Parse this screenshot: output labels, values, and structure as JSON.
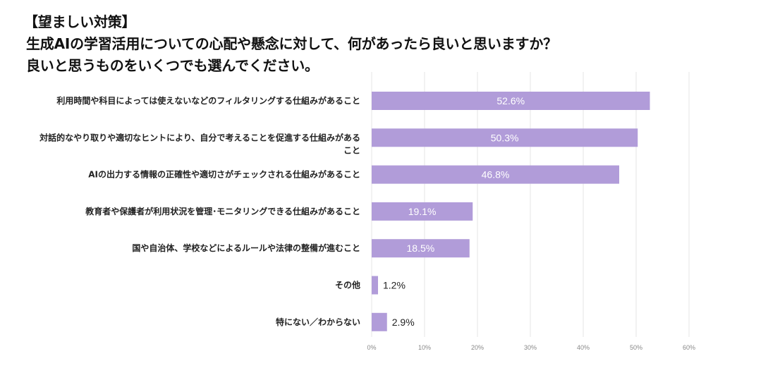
{
  "title": {
    "line1": "【望ましい対策】",
    "line2": "生成AIの学習活用についての心配や懸念に対して、何があったら良いと思いますか？",
    "line3": "良いと思うものをいくつでも選んでください。"
  },
  "chart_data": {
    "type": "bar",
    "orientation": "horizontal",
    "categories": [
      [
        "利用時間や科目によっては使えないなどのフィルタリングする仕組みがあること"
      ],
      [
        "対話的なやり取りや適切なヒントにより、自分で考えることを促進する仕組みがある",
        "こと"
      ],
      [
        "AIの出力する情報の正確性や適切さがチェックされる仕組みがあること"
      ],
      [
        "教育者や保護者が利用状況を管理･モニタリングできる仕組みがあること"
      ],
      [
        "国や自治体、学校などによるルールや法律の整備が進むこと"
      ],
      [
        "その他"
      ],
      [
        "特にない／わからない"
      ]
    ],
    "values": [
      52.6,
      50.3,
      46.8,
      19.1,
      18.5,
      1.2,
      2.9
    ],
    "value_labels": [
      "52.6%",
      "50.3%",
      "46.8%",
      "19.1%",
      "18.5%",
      "1.2%",
      "2.9%"
    ],
    "xlim": [
      0,
      60
    ],
    "ticks": [
      0,
      10,
      20,
      30,
      40,
      50,
      60
    ],
    "tick_labels": [
      "0%",
      "10%",
      "20%",
      "30%",
      "40%",
      "50%",
      "60%"
    ],
    "grid": true,
    "bar_color": "#b19cd9",
    "grid_color": "#e6e6e6"
  }
}
